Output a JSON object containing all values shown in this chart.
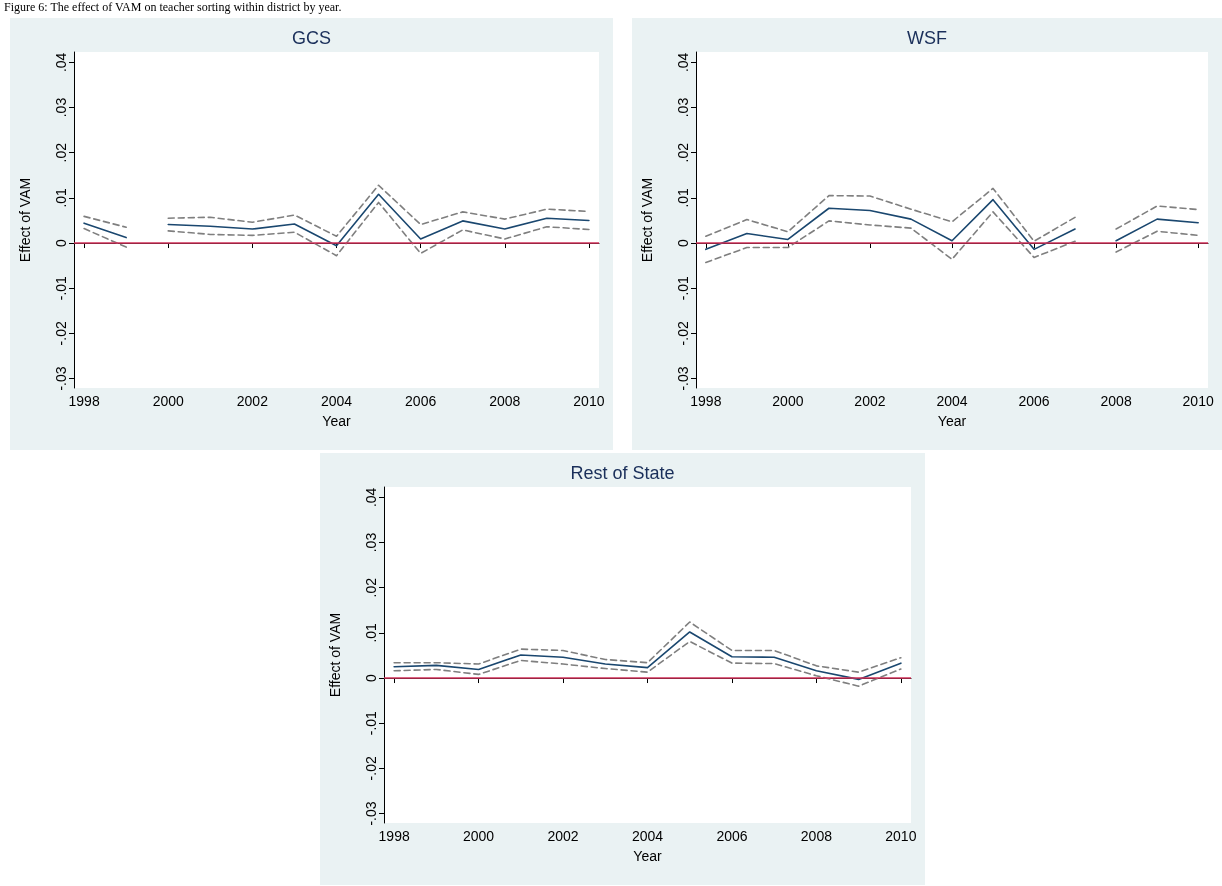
{
  "chart_data": [
    {
      "type": "line",
      "title": "GCS",
      "xlabel": "Year",
      "ylabel": "Effect of VAM",
      "annotations": [
        "Figure 6: The effect of VAM on teacher sorting within district by year."
      ],
      "xlim": [
        1997.76,
        2010.24
      ],
      "xticks": [
        1998,
        2000,
        2002,
        2004,
        2006,
        2008,
        2010
      ],
      "ylim": [
        -0.0321,
        0.0423
      ],
      "yticks": [
        {
          "value": -0.03,
          "label": "-.03"
        },
        {
          "value": -0.02,
          "label": "-.02"
        },
        {
          "value": -0.01,
          "label": "-.01"
        },
        {
          "value": 0,
          "label": "0"
        },
        {
          "value": 0.01,
          "label": ".01"
        },
        {
          "value": 0.02,
          "label": ".02"
        },
        {
          "value": 0.03,
          "label": ".03"
        },
        {
          "value": 0.04,
          "label": ".04"
        }
      ],
      "grid": false,
      "marker": "none",
      "ref_lines": [
        {
          "axis": "y",
          "value": 0,
          "color": "#d0325a",
          "line_style": "solid"
        }
      ],
      "series": [
        {
          "color": "#1a476f",
          "line_style": "solid",
          "x": [
            1998,
            1999
          ],
          "values": [
            0.0044,
            0.0012
          ]
        },
        {
          "color": "#1a476f",
          "line_style": "solid",
          "x": [
            2000,
            2001,
            2002,
            2003,
            2004,
            2005,
            2006,
            2007,
            2008,
            2009,
            2010
          ],
          "values": [
            0.0041,
            0.0037,
            0.0031,
            0.0042,
            -0.0006,
            0.0108,
            0.0009,
            0.0049,
            0.0031,
            0.0055,
            0.005
          ]
        },
        {
          "color": "#7f7f7f",
          "line_style": "dashed",
          "x": [
            1998,
            1999
          ],
          "values": [
            0.0059,
            0.0035
          ]
        },
        {
          "color": "#7f7f7f",
          "line_style": "dashed",
          "x": [
            2000,
            2001,
            2002,
            2003,
            2004,
            2005,
            2006,
            2007,
            2008,
            2009,
            2010
          ],
          "values": [
            0.0055,
            0.0057,
            0.0046,
            0.0062,
            0.0015,
            0.0128,
            0.0041,
            0.0069,
            0.0053,
            0.0075,
            0.007
          ]
        },
        {
          "color": "#7f7f7f",
          "line_style": "dashed",
          "x": [
            1998,
            1999
          ],
          "values": [
            0.0032,
            -0.0009
          ]
        },
        {
          "color": "#7f7f7f",
          "line_style": "dashed",
          "x": [
            2000,
            2001,
            2002,
            2003,
            2004,
            2005,
            2006,
            2007,
            2008,
            2009,
            2010
          ],
          "values": [
            0.0027,
            0.0019,
            0.0017,
            0.0024,
            -0.0028,
            0.009,
            -0.0023,
            0.0029,
            0.0009,
            0.0036,
            0.003
          ]
        }
      ]
    },
    {
      "type": "line",
      "title": "WSF",
      "xlabel": "Year",
      "ylabel": "Effect of VAM",
      "xlim": [
        1997.76,
        2010.24
      ],
      "xticks": [
        1998,
        2000,
        2002,
        2004,
        2006,
        2008,
        2010
      ],
      "ylim": [
        -0.0321,
        0.0423
      ],
      "yticks": [
        {
          "value": -0.03,
          "label": "-.03"
        },
        {
          "value": -0.02,
          "label": "-.02"
        },
        {
          "value": -0.01,
          "label": "-.01"
        },
        {
          "value": 0,
          "label": "0"
        },
        {
          "value": 0.01,
          "label": ".01"
        },
        {
          "value": 0.02,
          "label": ".02"
        },
        {
          "value": 0.03,
          "label": ".03"
        },
        {
          "value": 0.04,
          "label": ".04"
        }
      ],
      "grid": false,
      "marker": "none",
      "ref_lines": [
        {
          "axis": "y",
          "value": 0,
          "color": "#d0325a",
          "line_style": "solid"
        }
      ],
      "series": [
        {
          "color": "#1a476f",
          "line_style": "solid",
          "x": [
            1998,
            1999,
            2000,
            2001,
            2002,
            2003,
            2004,
            2005,
            2006,
            2007
          ],
          "values": [
            -0.0014,
            0.0021,
            0.0008,
            0.0077,
            0.0072,
            0.0053,
            0.0005,
            0.0096,
            -0.0014,
            0.0031
          ]
        },
        {
          "color": "#1a476f",
          "line_style": "solid",
          "x": [
            2008,
            2009,
            2010
          ],
          "values": [
            0.0005,
            0.0053,
            0.0045
          ]
        },
        {
          "color": "#7f7f7f",
          "line_style": "dashed",
          "x": [
            1998,
            1999,
            2000,
            2001,
            2002,
            2003,
            2004,
            2005,
            2006,
            2007
          ],
          "values": [
            0.0015,
            0.0052,
            0.0025,
            0.0105,
            0.0104,
            0.0075,
            0.0047,
            0.0121,
            0.0004,
            0.0057
          ]
        },
        {
          "color": "#7f7f7f",
          "line_style": "dashed",
          "x": [
            2008,
            2009,
            2010
          ],
          "values": [
            0.0031,
            0.0082,
            0.0074
          ]
        },
        {
          "color": "#7f7f7f",
          "line_style": "dashed",
          "x": [
            1998,
            1999,
            2000,
            2001,
            2002,
            2003,
            2004,
            2005,
            2006,
            2007
          ],
          "values": [
            -0.0043,
            -0.001,
            -0.001,
            0.0049,
            0.004,
            0.0033,
            -0.0036,
            0.0069,
            -0.0032,
            0.0004
          ]
        },
        {
          "color": "#7f7f7f",
          "line_style": "dashed",
          "x": [
            2008,
            2009,
            2010
          ],
          "values": [
            -0.002,
            0.0026,
            0.0017
          ]
        }
      ]
    },
    {
      "type": "line",
      "title": "Rest of State",
      "xlabel": "Year",
      "ylabel": "Effect of VAM",
      "xlim": [
        1997.76,
        2010.24
      ],
      "xticks": [
        1998,
        2000,
        2002,
        2004,
        2006,
        2008,
        2010
      ],
      "ylim": [
        -0.0321,
        0.0423
      ],
      "yticks": [
        {
          "value": -0.03,
          "label": "-.03"
        },
        {
          "value": -0.02,
          "label": "-.02"
        },
        {
          "value": -0.01,
          "label": "-.01"
        },
        {
          "value": 0,
          "label": "0"
        },
        {
          "value": 0.01,
          "label": ".01"
        },
        {
          "value": 0.02,
          "label": ".02"
        },
        {
          "value": 0.03,
          "label": ".03"
        },
        {
          "value": 0.04,
          "label": ".04"
        }
      ],
      "grid": false,
      "marker": "none",
      "ref_lines": [
        {
          "axis": "y",
          "value": 0,
          "color": "#d0325a",
          "line_style": "solid"
        }
      ],
      "series": [
        {
          "color": "#1a476f",
          "line_style": "solid",
          "x": [
            1998,
            1999,
            2000,
            2001,
            2002,
            2003,
            2004,
            2005,
            2006,
            2007,
            2008,
            2009,
            2010
          ],
          "values": [
            0.0025,
            0.0028,
            0.0019,
            0.0051,
            0.0046,
            0.0031,
            0.0023,
            0.0102,
            0.0047,
            0.0046,
            0.0016,
            -0.0003,
            0.0033
          ]
        },
        {
          "color": "#7f7f7f",
          "line_style": "dashed",
          "x": [
            1998,
            1999,
            2000,
            2001,
            2002,
            2003,
            2004,
            2005,
            2006,
            2007,
            2008,
            2009,
            2010
          ],
          "values": [
            0.0034,
            0.0034,
            0.0031,
            0.0064,
            0.0061,
            0.0041,
            0.0034,
            0.0124,
            0.0061,
            0.0061,
            0.0027,
            0.0013,
            0.0045
          ]
        },
        {
          "color": "#7f7f7f",
          "line_style": "dashed",
          "x": [
            1998,
            1999,
            2000,
            2001,
            2002,
            2003,
            2004,
            2005,
            2006,
            2007,
            2008,
            2009,
            2010
          ],
          "values": [
            0.0016,
            0.0019,
            0.0008,
            0.0039,
            0.0031,
            0.0021,
            0.0013,
            0.0081,
            0.0033,
            0.0032,
            0.0005,
            -0.0018,
            0.002
          ]
        }
      ]
    }
  ]
}
